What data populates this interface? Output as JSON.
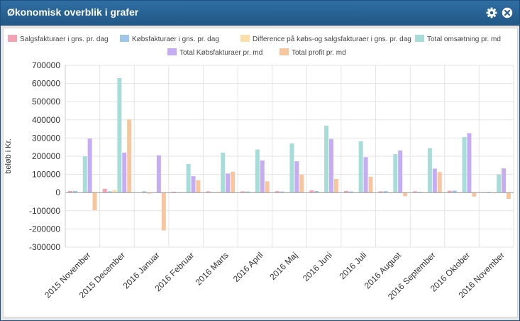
{
  "window": {
    "title": "Økonomisk overblik i grafer",
    "settings_icon": "gear-icon",
    "close_icon": "close-circle-icon"
  },
  "chart_data": {
    "type": "bar",
    "ylabel": "beløb i Kr.",
    "ylim": [
      -300000,
      700000
    ],
    "yticks": [
      700000,
      600000,
      500000,
      400000,
      300000,
      200000,
      100000,
      0,
      -100000,
      -200000,
      -300000
    ],
    "grid": true,
    "legend_position": "top",
    "categories": [
      "2015 November",
      "2015 December",
      "2016 Januar",
      "2016 Februar",
      "2016 Marts",
      "2016 April",
      "2016 Maj",
      "2016 Juni",
      "2016 Juli",
      "2016 August",
      "2016 September",
      "2016 Oktober",
      "2016 November"
    ],
    "series": [
      {
        "name": "Salgsfakturaer i gns. pr. dag",
        "color": "#f4a3b5",
        "values": [
          9000,
          21000,
          0,
          5000,
          7000,
          7000,
          8000,
          12000,
          9000,
          7000,
          7000,
          10000,
          3000
        ]
      },
      {
        "name": "Købsfakturaer i gns. pr. dag",
        "color": "#9ec5ea",
        "values": [
          9000,
          7000,
          7000,
          3000,
          3000,
          6000,
          6000,
          9000,
          6000,
          8000,
          4000,
          11000,
          4000
        ]
      },
      {
        "name": "Difference på købs-og salgsfakturaer i gns. pr. dag",
        "color": "#fbdfa6",
        "values": [
          0,
          14000,
          -7000,
          2000,
          4000,
          1000,
          2000,
          3000,
          3000,
          -1000,
          3000,
          -1000,
          -1000
        ]
      },
      {
        "name": "Total omsætning pr. md",
        "color": "#a7ddd8",
        "values": [
          200000,
          630000,
          0,
          157000,
          220000,
          237000,
          270000,
          368000,
          282000,
          212000,
          245000,
          305000,
          100000
        ]
      },
      {
        "name": "Total Købsfakturaer pr. md",
        "color": "#c6acf2",
        "values": [
          297000,
          220000,
          205000,
          90000,
          105000,
          177000,
          172000,
          295000,
          195000,
          232000,
          132000,
          327000,
          133000
        ]
      },
      {
        "name": "Total profit pr. md",
        "color": "#f7c69e",
        "values": [
          -97000,
          402000,
          -208000,
          68000,
          115000,
          62000,
          98000,
          75000,
          87000,
          -20000,
          113000,
          -22000,
          -35000
        ]
      }
    ]
  }
}
